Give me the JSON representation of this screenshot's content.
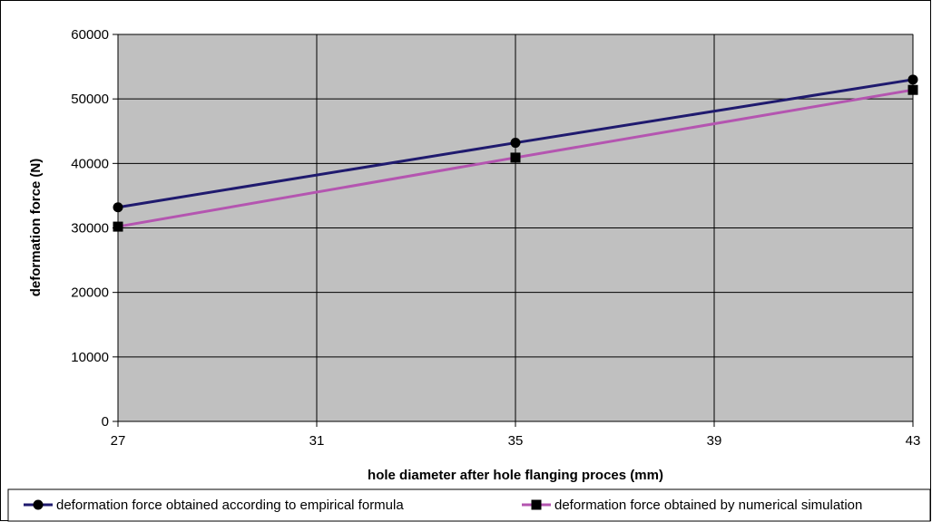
{
  "chart_data": {
    "type": "line",
    "title": "",
    "xlabel": "hole diameter after hole flanging proces (mm)",
    "ylabel": "deformation force (N)",
    "x_ticks": [
      "27",
      "31",
      "35",
      "39",
      "43"
    ],
    "y_ticks": [
      "0",
      "10000",
      "20000",
      "30000",
      "40000",
      "50000",
      "60000"
    ],
    "xlim": [
      27,
      43
    ],
    "ylim": [
      0,
      60000
    ],
    "grid": true,
    "plot_background": "#c0c0c0",
    "legend_position": "bottom",
    "x": [
      27,
      35,
      43
    ],
    "series": [
      {
        "name": "deformation force obtained according to empirical formula",
        "values": [
          33200,
          43200,
          53000
        ],
        "color": "#1f1a6e",
        "marker": "circle"
      },
      {
        "name": "deformation force obtained by numerical simulation",
        "values": [
          30200,
          40900,
          51400
        ],
        "color": "#b455b0",
        "marker": "square"
      }
    ]
  }
}
